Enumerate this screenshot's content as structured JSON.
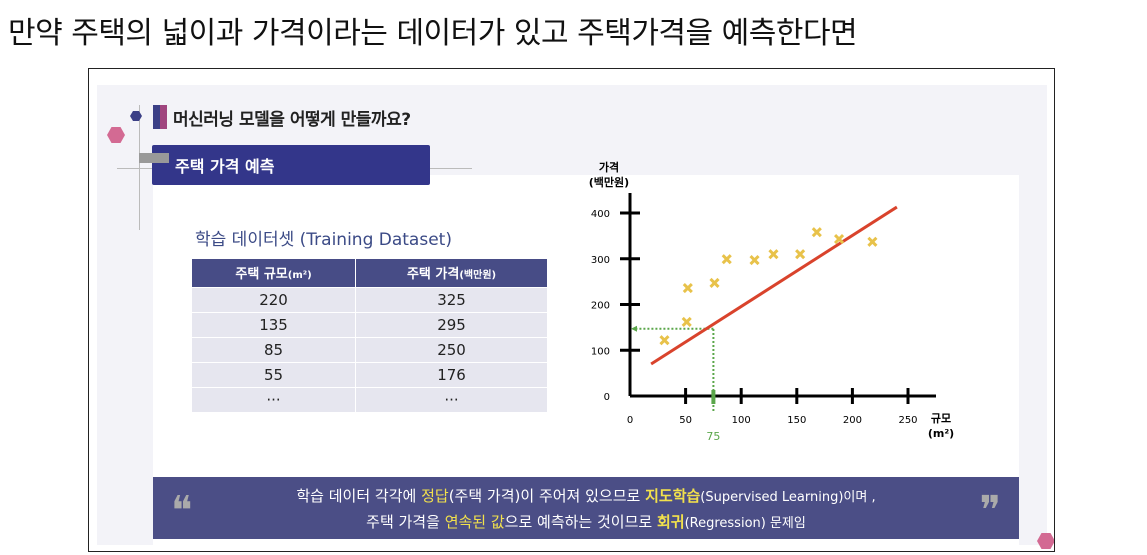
{
  "heading": "만약 주택의 넓이과 가격이라는 데이터가 있고 주택가격을 예측한다면",
  "slide": {
    "title": "머신러닝 모델을 어떻게 만들까요?",
    "banner": "주택 가격 예측",
    "dataset_title": "학습 데이터셋 (Training Dataset)",
    "table": {
      "headers": [
        {
          "main": "주택 규모",
          "unit": "(m²)"
        },
        {
          "main": "주택 가격",
          "unit": "(백만원)"
        }
      ],
      "rows": [
        [
          "220",
          "325"
        ],
        [
          "135",
          "295"
        ],
        [
          "85",
          "250"
        ],
        [
          "55",
          "176"
        ],
        [
          "···",
          "···"
        ]
      ]
    },
    "quote": {
      "line1_a": "학습 데이터 각각에 ",
      "line1_b": "정답",
      "line1_c": "(주택 가격)이 주어져 있으므로 ",
      "line1_d": "지도학습",
      "line1_e": "(Supervised Learning)이며 ,",
      "line2_a": "주택 가격을 ",
      "line2_b": "연속된 값",
      "line2_c": "으로 예측하는 것이므로 ",
      "line2_d": "회귀",
      "line2_e": "(Regression) 문제임",
      "open_mark": "❝",
      "close_mark": "❞"
    }
  },
  "chart_data": {
    "type": "scatter",
    "ylabel": "가격",
    "ylabel_unit": "(백만원)",
    "xlabel": "규모",
    "xlabel_unit": "(m²)",
    "xlim": [
      0,
      250
    ],
    "ylim": [
      0,
      400
    ],
    "xticks": [
      0,
      50,
      100,
      150,
      200,
      250
    ],
    "yticks": [
      0,
      100,
      200,
      300,
      400
    ],
    "points": [
      [
        31,
        122
      ],
      [
        51,
        162
      ],
      [
        52,
        236
      ],
      [
        76,
        247
      ],
      [
        87,
        299
      ],
      [
        112,
        297
      ],
      [
        129,
        310
      ],
      [
        153,
        310
      ],
      [
        168,
        358
      ],
      [
        188,
        343
      ],
      [
        218,
        337
      ]
    ],
    "regression_line": [
      [
        19,
        70
      ],
      [
        240,
        413
      ]
    ],
    "prediction": {
      "x": 75,
      "label": "75",
      "y": 147
    },
    "colors": {
      "points": "#e8c24a",
      "line": "#d9432c",
      "prediction": "#5aa64a"
    },
    "grid": false
  }
}
